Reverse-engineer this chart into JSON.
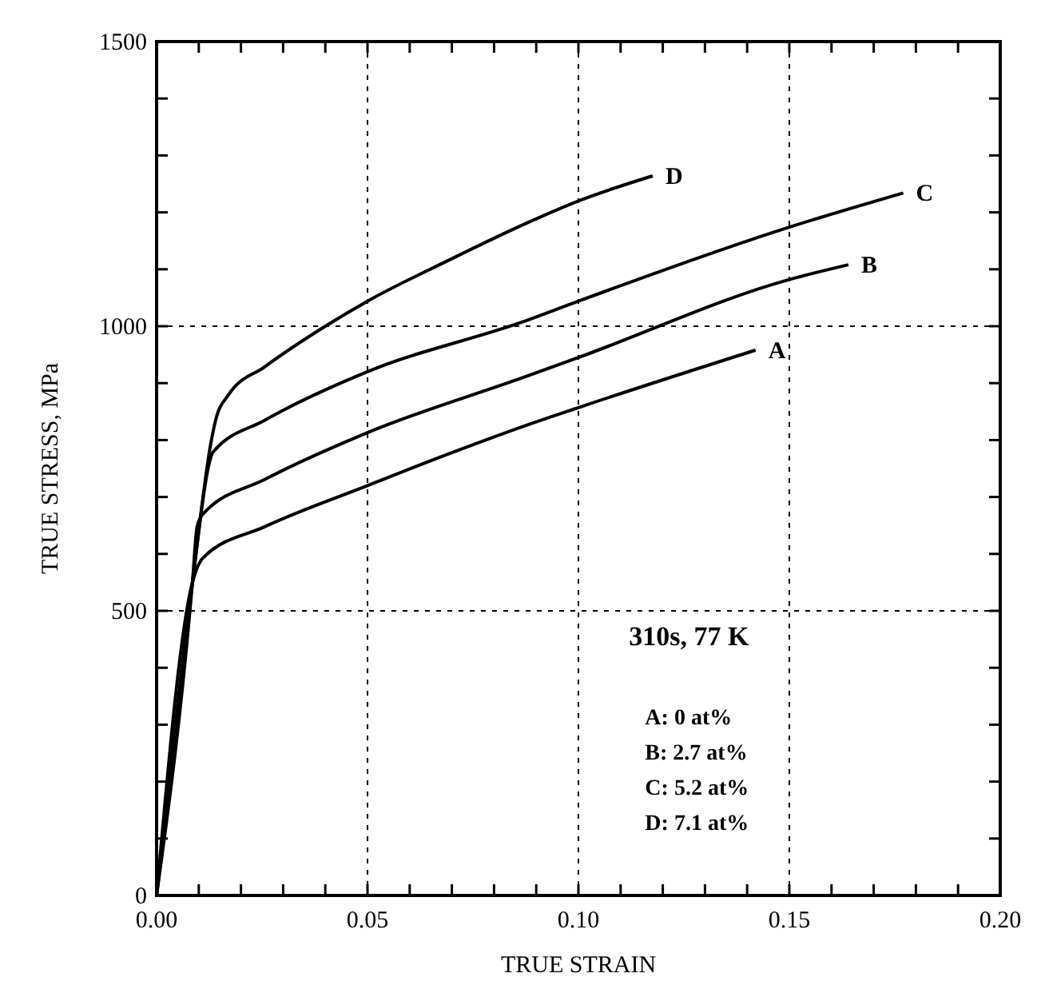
{
  "chart_data": {
    "type": "line",
    "xlabel": "TRUE STRAIN",
    "ylabel": "TRUE STRESS, MPa",
    "xlim": [
      0,
      0.2
    ],
    "ylim": [
      0,
      1500
    ],
    "xticks": [
      {
        "value": 0,
        "label": "0.00"
      },
      {
        "value": 0.01,
        "label": null
      },
      {
        "value": 0.02,
        "label": null
      },
      {
        "value": 0.03,
        "label": null
      },
      {
        "value": 0.04,
        "label": null
      },
      {
        "value": 0.05,
        "label": "0.05"
      },
      {
        "value": 0.06,
        "label": null
      },
      {
        "value": 0.07,
        "label": null
      },
      {
        "value": 0.08,
        "label": null
      },
      {
        "value": 0.09,
        "label": null
      },
      {
        "value": 0.1,
        "label": "0.10"
      },
      {
        "value": 0.11,
        "label": null
      },
      {
        "value": 0.12,
        "label": null
      },
      {
        "value": 0.13,
        "label": null
      },
      {
        "value": 0.14,
        "label": null
      },
      {
        "value": 0.15,
        "label": "0.15"
      },
      {
        "value": 0.16,
        "label": null
      },
      {
        "value": 0.17,
        "label": null
      },
      {
        "value": 0.18,
        "label": null
      },
      {
        "value": 0.19,
        "label": null
      },
      {
        "value": 0.2,
        "label": "0.20"
      }
    ],
    "yticks": [
      0,
      {
        "value": 100,
        "label": null
      },
      {
        "value": 200,
        "label": null
      },
      {
        "value": 300,
        "label": null
      },
      {
        "value": 400,
        "label": null
      },
      500,
      {
        "value": 600,
        "label": null
      },
      {
        "value": 700,
        "label": null
      },
      {
        "value": 800,
        "label": null
      },
      {
        "value": 900,
        "label": null
      },
      1000,
      {
        "value": 1100,
        "label": null
      },
      {
        "value": 1200,
        "label": null
      },
      {
        "value": 1300,
        "label": null
      },
      {
        "value": 1400,
        "label": null
      },
      1500
    ],
    "grid": true,
    "line_style": "solid",
    "series": [
      {
        "name": "A",
        "color": "#000000",
        "x": [
          0,
          0.0085,
          0.011,
          0.0257,
          0.05,
          0.069,
          0.0877,
          0.1,
          0.142
        ],
        "values": [
          0,
          550,
          593,
          648,
          720,
          775,
          826,
          857,
          958
        ]
      },
      {
        "name": "B",
        "color": "#000000",
        "x": [
          0,
          0.0085,
          0.0096,
          0.011,
          0.0257,
          0.05,
          0.0877,
          0.1,
          0.15,
          0.164
        ],
        "values": [
          0,
          550,
          648,
          670,
          731,
          813,
          912,
          945,
          1082,
          1108
        ]
      },
      {
        "name": "C",
        "color": "#000000",
        "x": [
          0,
          0.0085,
          0.0125,
          0.0133,
          0.0257,
          0.05,
          0.0877,
          0.1,
          0.15,
          0.177
        ],
        "values": [
          0,
          550,
          760,
          778,
          835,
          920,
          1010,
          1044,
          1174,
          1234
        ]
      },
      {
        "name": "D",
        "color": "#000000",
        "x": [
          0,
          0.0085,
          0.013,
          0.014,
          0.017,
          0.0257,
          0.04,
          0.05,
          0.069,
          0.0877,
          0.1,
          0.1176
        ],
        "values": [
          0,
          550,
          800,
          835,
          879,
          929,
          1000,
          1044,
          1115,
          1181,
          1220,
          1264
        ]
      }
    ],
    "annotations": [
      "310s, 77 K",
      "A:  0 at%",
      "B:  2.7 at%",
      "C:  5.2  at%",
      "D:  7.1 at%"
    ]
  }
}
